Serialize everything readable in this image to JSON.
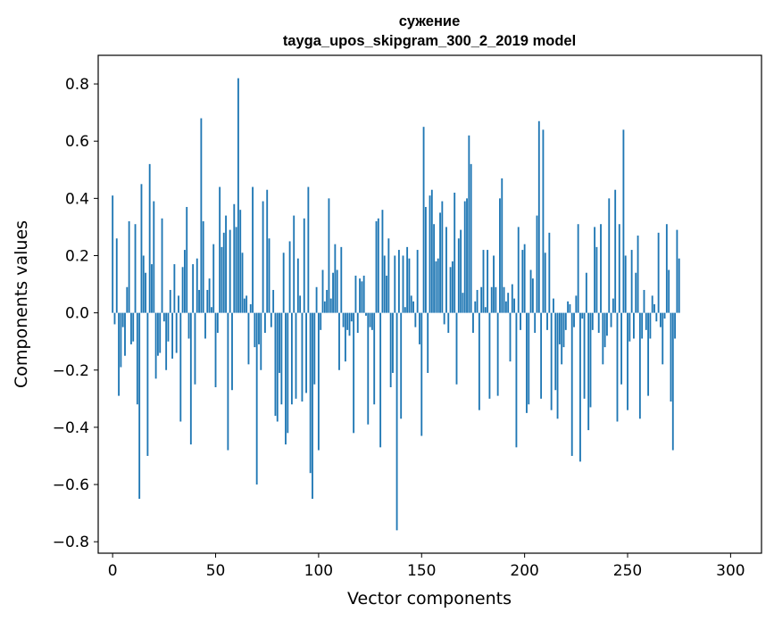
{
  "chart_data": {
    "type": "bar",
    "title_line1": "сужение",
    "title_line2": "tayga_upos_skipgram_300_2_2019 model",
    "xlabel": "Vector components",
    "ylabel": "Components values",
    "xlim": [
      -7,
      315
    ],
    "ylim": [
      -0.84,
      0.9
    ],
    "x_ticks": [
      0,
      50,
      100,
      150,
      200,
      250,
      300
    ],
    "x_tick_labels": [
      "0",
      "50",
      "100",
      "150",
      "200",
      "250",
      "300"
    ],
    "y_ticks": [
      -0.8,
      -0.6,
      -0.4,
      -0.2,
      0.0,
      0.2,
      0.4,
      0.6,
      0.8
    ],
    "y_tick_labels": [
      "−0.8",
      "−0.6",
      "−0.4",
      "−0.2",
      "0.0",
      "0.2",
      "0.4",
      "0.6",
      "0.8"
    ],
    "bar_color": "#1f77b4",
    "grid": false,
    "values": [
      0.41,
      -0.04,
      0.26,
      -0.29,
      -0.19,
      -0.05,
      -0.15,
      0.09,
      0.32,
      -0.11,
      -0.1,
      0.31,
      -0.32,
      -0.65,
      0.45,
      0.2,
      0.14,
      -0.5,
      0.52,
      0.17,
      0.39,
      -0.23,
      -0.15,
      -0.14,
      0.33,
      -0.03,
      -0.2,
      -0.1,
      0.08,
      -0.16,
      0.17,
      -0.14,
      0.06,
      -0.38,
      0.16,
      0.22,
      0.37,
      -0.09,
      -0.46,
      0.17,
      -0.25,
      0.19,
      0.08,
      0.68,
      0.32,
      -0.09,
      0.08,
      0.12,
      0.02,
      0.24,
      -0.26,
      -0.07,
      0.44,
      0.23,
      0.28,
      0.34,
      -0.48,
      0.29,
      -0.27,
      0.38,
      0.3,
      0.82,
      0.36,
      0.21,
      0.05,
      0.06,
      -0.18,
      0.03,
      0.44,
      -0.12,
      -0.6,
      -0.11,
      -0.2,
      0.39,
      -0.07,
      0.43,
      0.26,
      -0.05,
      0.08,
      -0.36,
      -0.38,
      -0.21,
      -0.32,
      0.21,
      -0.46,
      -0.42,
      0.25,
      -0.32,
      0.34,
      -0.3,
      0.19,
      0.06,
      -0.31,
      0.33,
      -0.28,
      0.44,
      -0.56,
      -0.65,
      -0.25,
      0.09,
      -0.48,
      -0.06,
      0.15,
      0.04,
      0.08,
      0.4,
      0.05,
      0.14,
      0.24,
      0.15,
      -0.2,
      0.23,
      -0.05,
      -0.17,
      -0.06,
      -0.08,
      -0.03,
      -0.42,
      0.13,
      -0.07,
      0.12,
      0.11,
      0.13,
      -0.01,
      -0.39,
      -0.05,
      -0.06,
      -0.32,
      0.32,
      0.33,
      -0.47,
      0.36,
      0.2,
      0.13,
      0.26,
      -0.26,
      -0.21,
      0.2,
      -0.76,
      0.22,
      -0.37,
      0.2,
      0.02,
      0.23,
      0.19,
      0.06,
      0.04,
      -0.05,
      0.22,
      -0.11,
      -0.43,
      0.65,
      0.37,
      -0.21,
      0.41,
      0.43,
      0.31,
      0.18,
      0.19,
      0.35,
      0.39,
      -0.04,
      0.3,
      -0.07,
      0.16,
      0.18,
      0.42,
      -0.25,
      0.26,
      0.29,
      0.07,
      0.39,
      0.4,
      0.62,
      0.52,
      -0.07,
      0.04,
      0.08,
      -0.34,
      0.09,
      0.22,
      0.02,
      0.22,
      -0.3,
      0.09,
      0.2,
      0.09,
      -0.29,
      0.4,
      0.47,
      0.09,
      0.04,
      0.07,
      -0.17,
      0.1,
      0.05,
      -0.47,
      0.3,
      -0.06,
      0.22,
      0.24,
      -0.35,
      -0.32,
      0.15,
      0.12,
      -0.07,
      0.34,
      0.67,
      -0.3,
      0.64,
      0.21,
      -0.06,
      0.28,
      -0.34,
      0.05,
      -0.27,
      -0.37,
      -0.11,
      -0.18,
      -0.12,
      -0.06,
      0.04,
      0.03,
      -0.5,
      -0.05,
      0.06,
      0.31,
      -0.52,
      -0.02,
      -0.3,
      0.14,
      -0.41,
      -0.33,
      -0.06,
      0.3,
      0.23,
      -0.07,
      0.31,
      -0.18,
      -0.12,
      -0.08,
      0.4,
      -0.05,
      0.05,
      0.43,
      -0.38,
      0.31,
      -0.25,
      0.64,
      0.2,
      -0.34,
      -0.1,
      0.22,
      -0.09,
      0.14,
      0.27,
      -0.37,
      -0.09,
      0.08,
      -0.06,
      -0.29,
      -0.09,
      0.06,
      0.03,
      -0.03,
      0.28,
      -0.05,
      -0.18,
      -0.02,
      0.31,
      0.15,
      -0.31,
      -0.48,
      -0.09,
      0.29,
      0.19
    ]
  }
}
